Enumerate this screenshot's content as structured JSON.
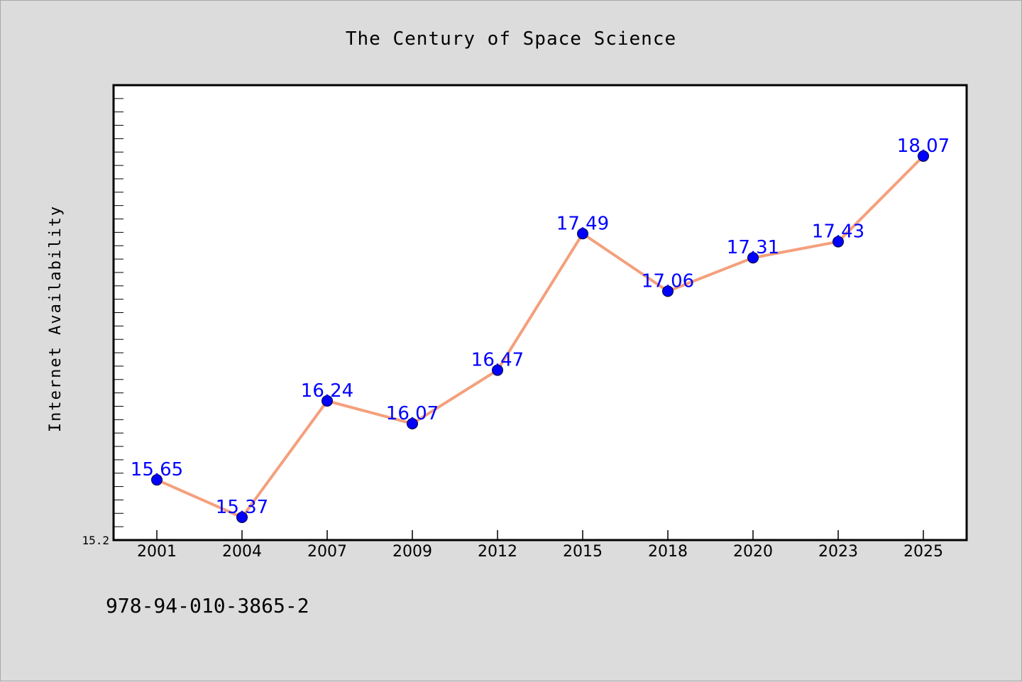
{
  "chart_data": {
    "type": "line",
    "title": "The Century of Space Science",
    "xlabel": "",
    "ylabel": "Internet Availability",
    "categories": [
      "2001",
      "2004",
      "2007",
      "2009",
      "2012",
      "2015",
      "2018",
      "2020",
      "2023",
      "2025"
    ],
    "series": [
      {
        "values": [
          15.65,
          15.37,
          16.24,
          16.07,
          16.47,
          17.49,
          17.06,
          17.31,
          17.43,
          18.07
        ]
      }
    ],
    "data_labels": [
      "15.65",
      "15.37",
      "16.24",
      "16.07",
      "16.47",
      "17.49",
      "17.06",
      "17.31",
      "17.43",
      "18.07"
    ],
    "y_tick_labels": [
      "15.2"
    ],
    "ylim": [
      15.2,
      18.6
    ],
    "grid": false,
    "legend": "none",
    "colors": {
      "line": "#f4a07c",
      "marker": "#0000ff",
      "label": "#0000ff",
      "plot_bg": "#ffffff",
      "figure_bg": "#dcdcdc"
    }
  },
  "footer": {
    "isbn": "978-94-010-3865-2"
  }
}
